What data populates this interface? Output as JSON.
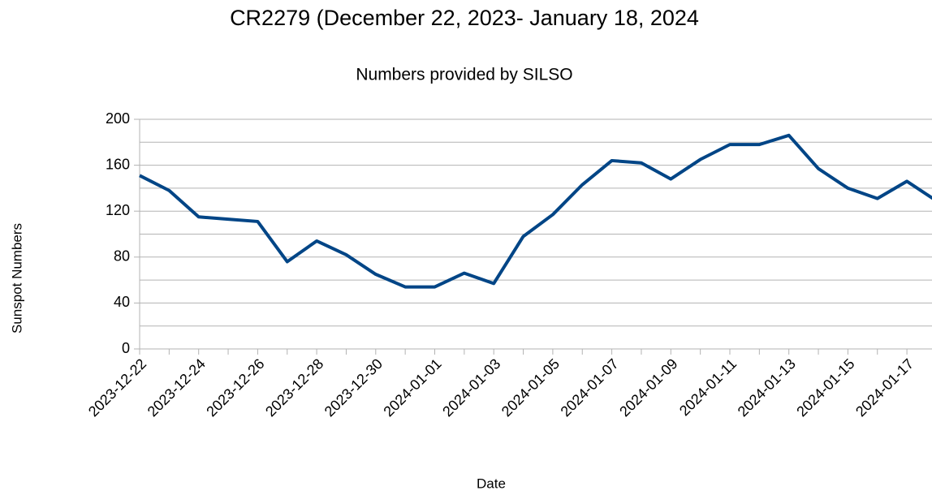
{
  "chart_data": {
    "type": "line",
    "title": "CR2279 (December 22, 2023- January 18, 2024",
    "subtitle": "Numbers provided by SILSO",
    "y_label": "Sunspot Numbers",
    "x_label": "Date",
    "categories": [
      "2023-12-22",
      null,
      "2023-12-24",
      null,
      "2023-12-26",
      null,
      "2023-12-28",
      null,
      "2023-12-30",
      null,
      "2024-01-01",
      null,
      "2024-01-03",
      null,
      "2024-01-05",
      null,
      "2024-01-07",
      null,
      "2024-01-09",
      null,
      "2024-01-11",
      null,
      "2024-01-13",
      null,
      "2024-01-15",
      null,
      "2024-01-17",
      null
    ],
    "series": [
      {
        "name": "Sunspot Numbers",
        "color": "#004586",
        "values": [
          151,
          138,
          115,
          113,
          111,
          76,
          94,
          82,
          65,
          54,
          54,
          66,
          57,
          98,
          117,
          143,
          164,
          162,
          148,
          165,
          178,
          178,
          186,
          157,
          140,
          131,
          146,
          129
        ]
      }
    ],
    "ylim": [
      0,
      200
    ],
    "yticks": [
      0,
      40,
      80,
      120,
      160,
      200
    ],
    "minor_yticks": [
      20,
      60,
      100,
      140,
      180
    ],
    "grid": true
  }
}
